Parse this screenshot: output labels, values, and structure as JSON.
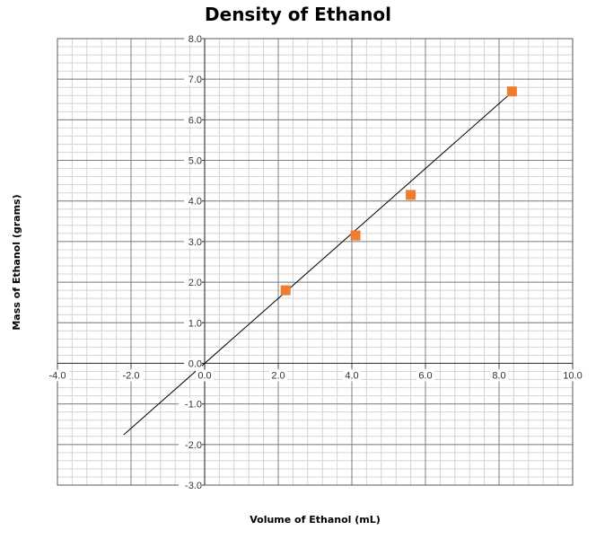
{
  "chart_data": {
    "type": "scatter",
    "title": "Density of Ethanol",
    "xlabel": "Volume of Ethanol (mL)",
    "ylabel": "Mass of Ethanol (grams)",
    "xlim": [
      -4.0,
      10.0
    ],
    "ylim": [
      -3.0,
      8.0
    ],
    "x_major_step": 2.0,
    "y_major_step": 1.0,
    "x_minor_step": 0.4,
    "y_minor_step": 0.2,
    "grid": true,
    "legend": "none",
    "x_tick_labels": [
      "-4.0",
      "-2.0",
      "0.0",
      "2.0",
      "4.0",
      "6.0",
      "8.0",
      "10.0"
    ],
    "y_tick_labels": [
      "-3.0",
      "-2.0",
      "-1.0",
      "0.0",
      "1.0",
      "2.0",
      "3.0",
      "4.0",
      "5.0",
      "6.0",
      "7.0",
      "8.0"
    ],
    "series": [
      {
        "marker": "square",
        "color": "#ED7D31",
        "points": [
          {
            "x": 2.2,
            "y": 1.8
          },
          {
            "x": 4.1,
            "y": 3.15
          },
          {
            "x": 5.6,
            "y": 4.15
          },
          {
            "x": 8.35,
            "y": 6.7
          }
        ]
      }
    ],
    "trendline": {
      "type": "linear",
      "color": "#000000",
      "x_range": [
        -2.2,
        8.35
      ],
      "slope": 0.8,
      "intercept": 0.0
    }
  }
}
